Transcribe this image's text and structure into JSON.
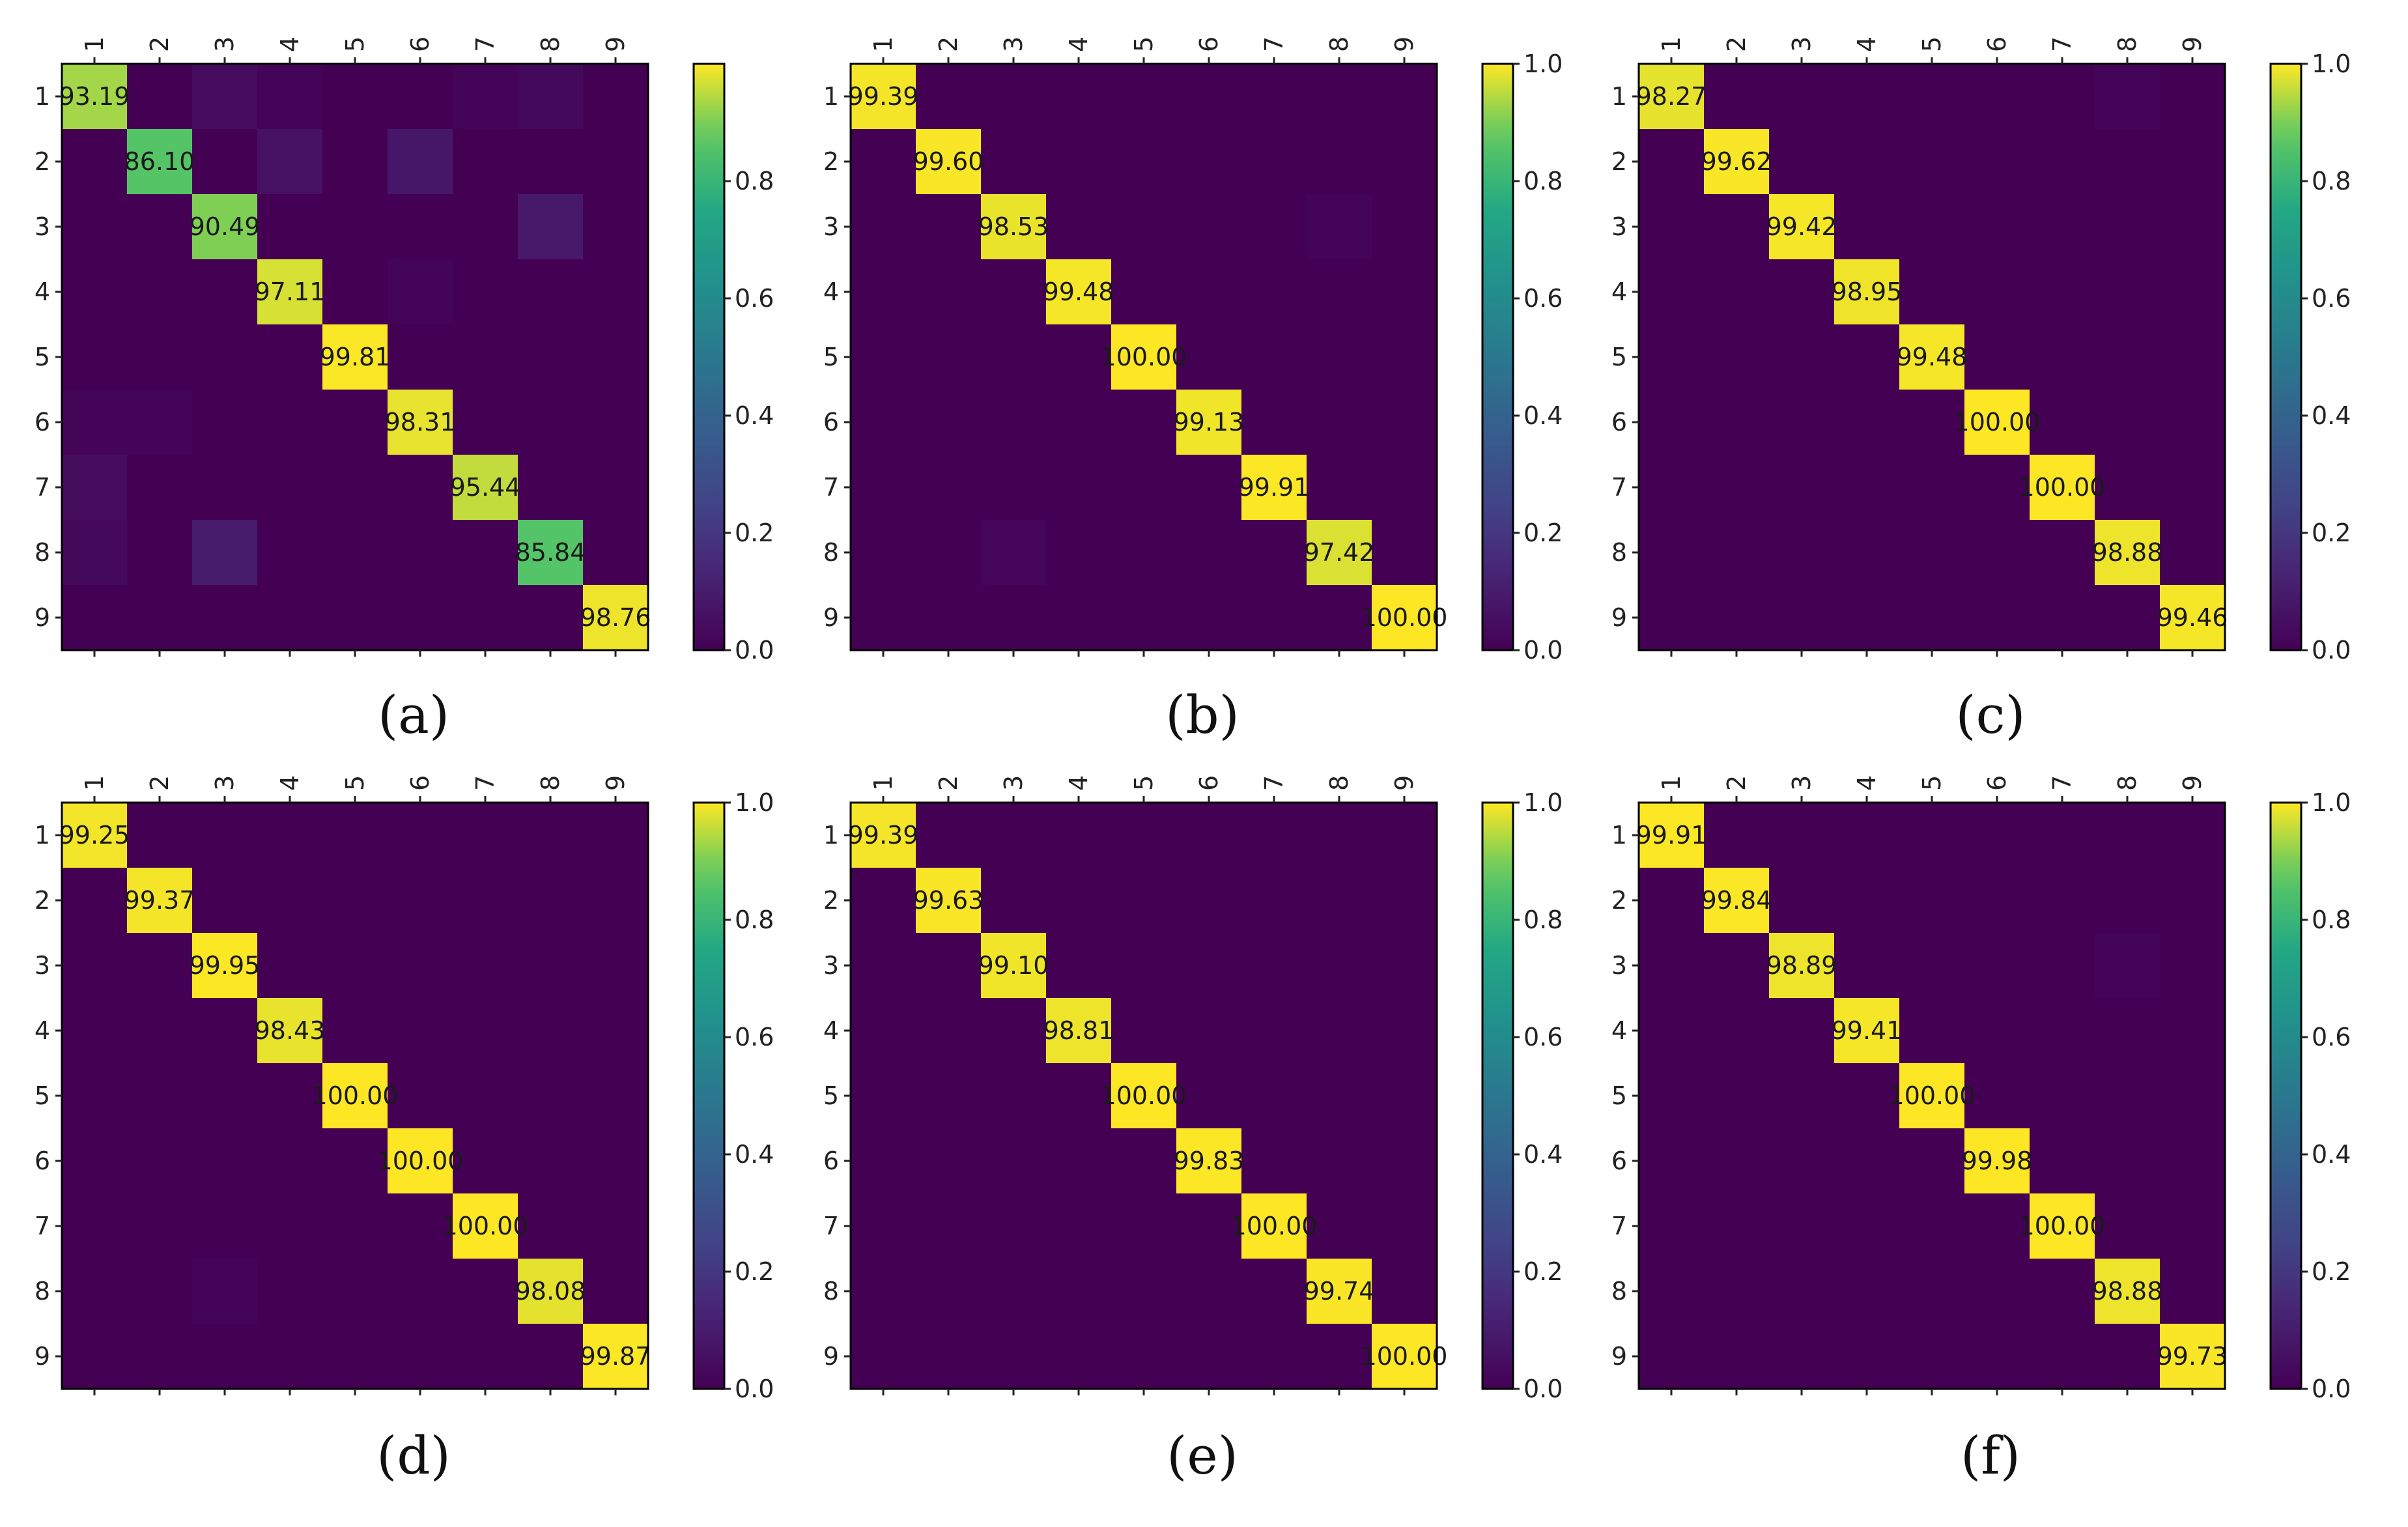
{
  "chart_data": [
    {
      "type": "heatmap",
      "caption": "(a)",
      "rows": [
        "1",
        "2",
        "3",
        "4",
        "5",
        "6",
        "7",
        "8",
        "9"
      ],
      "columns": [
        "1",
        "2",
        "3",
        "4",
        "5",
        "6",
        "7",
        "8",
        "9"
      ],
      "diagonal_labels": [
        "93.19",
        "86.10",
        "90.49",
        "97.11",
        "99.81",
        "98.31",
        "95.44",
        "85.84",
        "98.76"
      ],
      "matrix": [
        [
          0.9319,
          0.0,
          0.04,
          0.01,
          0.0,
          0.0,
          0.01,
          0.03,
          0.0
        ],
        [
          0.0,
          0.861,
          0.0,
          0.06,
          0.0,
          0.08,
          0.0,
          0.0,
          0.0
        ],
        [
          0.0,
          0.0,
          0.9049,
          0.0,
          0.0,
          0.0,
          0.0,
          0.09,
          0.0
        ],
        [
          0.0,
          0.0,
          0.0,
          0.9711,
          0.0,
          0.01,
          0.0,
          0.0,
          0.0
        ],
        [
          0.0,
          0.0,
          0.0,
          0.0,
          0.9981,
          0.0,
          0.0,
          0.0,
          0.0
        ],
        [
          0.01,
          0.01,
          0.0,
          0.0,
          0.0,
          0.9831,
          0.0,
          0.0,
          0.0
        ],
        [
          0.04,
          0.0,
          0.0,
          0.0,
          0.0,
          0.0,
          0.9544,
          0.0,
          0.0
        ],
        [
          0.03,
          0.0,
          0.1,
          0.0,
          0.0,
          0.0,
          0.0,
          0.8584,
          0.0
        ],
        [
          0.0,
          0.0,
          0.0,
          0.0,
          0.0,
          0.0,
          0.0,
          0.0,
          0.9876
        ]
      ],
      "colorbar": {
        "range": [
          0.0,
          1.0
        ],
        "ticks": [
          "0.0",
          "0.2",
          "0.4",
          "0.6",
          "0.8"
        ]
      }
    },
    {
      "type": "heatmap",
      "caption": "(b)",
      "rows": [
        "1",
        "2",
        "3",
        "4",
        "5",
        "6",
        "7",
        "8",
        "9"
      ],
      "columns": [
        "1",
        "2",
        "3",
        "4",
        "5",
        "6",
        "7",
        "8",
        "9"
      ],
      "diagonal_labels": [
        "99.39",
        "99.60",
        "98.53",
        "99.48",
        "100.00",
        "99.13",
        "99.91",
        "97.42",
        "100.00"
      ],
      "matrix": [
        [
          0.9939,
          0,
          0,
          0,
          0,
          0,
          0,
          0,
          0
        ],
        [
          0,
          0.996,
          0,
          0,
          0,
          0,
          0,
          0,
          0
        ],
        [
          0,
          0,
          0.9853,
          0,
          0,
          0,
          0,
          0.01,
          0
        ],
        [
          0,
          0,
          0,
          0.9948,
          0,
          0,
          0,
          0,
          0
        ],
        [
          0,
          0,
          0,
          0,
          1.0,
          0,
          0,
          0,
          0
        ],
        [
          0,
          0,
          0,
          0,
          0,
          0.9913,
          0,
          0,
          0
        ],
        [
          0,
          0,
          0,
          0,
          0,
          0,
          0.9991,
          0,
          0
        ],
        [
          0,
          0,
          0.02,
          0,
          0,
          0,
          0,
          0.9742,
          0
        ],
        [
          0,
          0,
          0,
          0,
          0,
          0,
          0,
          0,
          1.0
        ]
      ],
      "colorbar": {
        "range": [
          0.0,
          1.0
        ],
        "ticks": [
          "0.0",
          "0.2",
          "0.4",
          "0.6",
          "0.8",
          "1.0"
        ]
      }
    },
    {
      "type": "heatmap",
      "caption": "(c)",
      "rows": [
        "1",
        "2",
        "3",
        "4",
        "5",
        "6",
        "7",
        "8",
        "9"
      ],
      "columns": [
        "1",
        "2",
        "3",
        "4",
        "5",
        "6",
        "7",
        "8",
        "9"
      ],
      "diagonal_labels": [
        "98.27",
        "99.62",
        "99.42",
        "98.95",
        "99.48",
        "100.00",
        "100.00",
        "98.88",
        "99.46"
      ],
      "matrix": [
        [
          0.9827,
          0,
          0,
          0,
          0,
          0,
          0,
          0.015,
          0
        ],
        [
          0,
          0.9962,
          0,
          0,
          0,
          0,
          0,
          0,
          0
        ],
        [
          0,
          0,
          0.9942,
          0,
          0,
          0,
          0,
          0,
          0
        ],
        [
          0,
          0,
          0,
          0.9895,
          0,
          0,
          0,
          0,
          0
        ],
        [
          0,
          0,
          0,
          0,
          0.9948,
          0,
          0,
          0,
          0
        ],
        [
          0,
          0,
          0,
          0,
          0,
          1.0,
          0,
          0,
          0
        ],
        [
          0,
          0,
          0,
          0,
          0,
          0,
          1.0,
          0,
          0
        ],
        [
          0,
          0,
          0,
          0,
          0,
          0,
          0,
          0.9888,
          0
        ],
        [
          0,
          0,
          0,
          0,
          0,
          0,
          0,
          0,
          0.9946
        ]
      ],
      "colorbar": {
        "range": [
          0.0,
          1.0
        ],
        "ticks": [
          "0.0",
          "0.2",
          "0.4",
          "0.6",
          "0.8",
          "1.0"
        ]
      }
    },
    {
      "type": "heatmap",
      "caption": "(d)",
      "rows": [
        "1",
        "2",
        "3",
        "4",
        "5",
        "6",
        "7",
        "8",
        "9"
      ],
      "columns": [
        "1",
        "2",
        "3",
        "4",
        "5",
        "6",
        "7",
        "8",
        "9"
      ],
      "diagonal_labels": [
        "99.25",
        "99.37",
        "99.95",
        "98.43",
        "100.00",
        "100.00",
        "100.00",
        "98.08",
        "99.87"
      ],
      "matrix": [
        [
          0.9925,
          0,
          0,
          0,
          0,
          0,
          0,
          0,
          0
        ],
        [
          0,
          0.9937,
          0,
          0,
          0,
          0,
          0,
          0,
          0
        ],
        [
          0,
          0,
          0.9995,
          0,
          0,
          0,
          0,
          0,
          0
        ],
        [
          0,
          0,
          0,
          0.9843,
          0,
          0,
          0,
          0,
          0
        ],
        [
          0,
          0,
          0,
          0,
          1.0,
          0,
          0,
          0,
          0
        ],
        [
          0,
          0,
          0,
          0,
          0,
          1.0,
          0,
          0,
          0
        ],
        [
          0,
          0,
          0,
          0,
          0,
          0,
          1.0,
          0,
          0
        ],
        [
          0,
          0,
          0.015,
          0,
          0,
          0,
          0,
          0.9808,
          0
        ],
        [
          0,
          0,
          0,
          0,
          0,
          0,
          0,
          0,
          0.9987
        ]
      ],
      "colorbar": {
        "range": [
          0.0,
          1.0
        ],
        "ticks": [
          "0.0",
          "0.2",
          "0.4",
          "0.6",
          "0.8",
          "1.0"
        ]
      }
    },
    {
      "type": "heatmap",
      "caption": "(e)",
      "rows": [
        "1",
        "2",
        "3",
        "4",
        "5",
        "6",
        "7",
        "8",
        "9"
      ],
      "columns": [
        "1",
        "2",
        "3",
        "4",
        "5",
        "6",
        "7",
        "8",
        "9"
      ],
      "diagonal_labels": [
        "99.39",
        "99.63",
        "99.10",
        "98.81",
        "100.00",
        "99.83",
        "100.00",
        "99.74",
        "100.00"
      ],
      "matrix": [
        [
          0.9939,
          0,
          0,
          0,
          0,
          0,
          0,
          0,
          0
        ],
        [
          0,
          0.9963,
          0,
          0,
          0,
          0,
          0,
          0,
          0
        ],
        [
          0,
          0,
          0.991,
          0,
          0,
          0,
          0,
          0,
          0
        ],
        [
          0,
          0,
          0,
          0.9881,
          0,
          0,
          0,
          0,
          0
        ],
        [
          0,
          0,
          0,
          0,
          1.0,
          0,
          0,
          0,
          0
        ],
        [
          0,
          0,
          0,
          0,
          0,
          0.9983,
          0,
          0,
          0
        ],
        [
          0,
          0,
          0,
          0,
          0,
          0,
          1.0,
          0,
          0
        ],
        [
          0,
          0,
          0,
          0,
          0,
          0,
          0,
          0.9974,
          0
        ],
        [
          0,
          0,
          0,
          0,
          0,
          0,
          0,
          0,
          1.0
        ]
      ],
      "colorbar": {
        "range": [
          0.0,
          1.0
        ],
        "ticks": [
          "0.0",
          "0.2",
          "0.4",
          "0.6",
          "0.8",
          "1.0"
        ]
      }
    },
    {
      "type": "heatmap",
      "caption": "(f)",
      "rows": [
        "1",
        "2",
        "3",
        "4",
        "5",
        "6",
        "7",
        "8",
        "9"
      ],
      "columns": [
        "1",
        "2",
        "3",
        "4",
        "5",
        "6",
        "7",
        "8",
        "9"
      ],
      "diagonal_labels": [
        "99.91",
        "99.84",
        "98.89",
        "99.41",
        "100.00",
        "99.98",
        "100.00",
        "98.88",
        "99.73"
      ],
      "matrix": [
        [
          0.9991,
          0,
          0,
          0,
          0,
          0,
          0,
          0,
          0
        ],
        [
          0,
          0.9984,
          0,
          0,
          0,
          0,
          0,
          0,
          0
        ],
        [
          0,
          0,
          0.9889,
          0,
          0,
          0,
          0,
          0.01,
          0
        ],
        [
          0,
          0,
          0,
          0.9941,
          0,
          0,
          0,
          0,
          0
        ],
        [
          0,
          0,
          0,
          0,
          1.0,
          0,
          0,
          0,
          0
        ],
        [
          0,
          0,
          0,
          0,
          0,
          0.9998,
          0,
          0,
          0
        ],
        [
          0,
          0,
          0,
          0,
          0,
          0,
          1.0,
          0,
          0
        ],
        [
          0,
          0,
          0,
          0,
          0,
          0,
          0,
          0.9888,
          0
        ],
        [
          0,
          0,
          0,
          0,
          0,
          0,
          0,
          0,
          0.9973
        ]
      ],
      "colorbar": {
        "range": [
          0.0,
          1.0
        ],
        "ticks": [
          "0.0",
          "0.2",
          "0.4",
          "0.6",
          "0.8",
          "1.0"
        ]
      }
    }
  ],
  "colormap": "viridis"
}
